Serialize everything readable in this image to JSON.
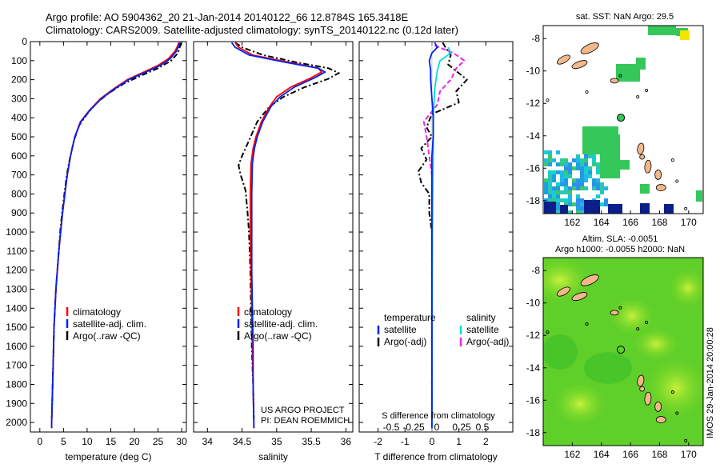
{
  "header": {
    "line1": "Argo profile: AO 5904362_20 21-Jan-2014 20140122_66 12.8784S 165.3418E",
    "line2": "Climatology: CARS2009. Satellite-adjusted climatology: synTS_20140122.nc (0.12d later)"
  },
  "stamp": "IMOS 29-Jan-2014 20:00:28",
  "colors": {
    "climatology": "#ff0000",
    "satellite": "#0022ee",
    "argo": "#000000",
    "sal_satellite": "#00dddd",
    "sal_argo": "#ee22ee"
  },
  "chart_data": [
    {
      "type": "line",
      "name": "temperature",
      "xlabel": "temperature (deg C)",
      "ylabel": "",
      "xlim": [
        -2,
        31
      ],
      "ylim": [
        2050,
        0
      ],
      "xticks": [
        "0",
        "5",
        "10",
        "15",
        "20",
        "25",
        "30"
      ],
      "xtick_values": [
        0,
        5,
        10,
        15,
        20,
        25,
        30
      ],
      "yticks": [
        "0",
        "100",
        "200",
        "300",
        "400",
        "500",
        "600",
        "700",
        "800",
        "900",
        "1000",
        "1100",
        "1200",
        "1300",
        "1400",
        "1500",
        "1600",
        "1700",
        "1800",
        "1900",
        "2000"
      ],
      "ytick_values": [
        0,
        100,
        200,
        300,
        400,
        500,
        600,
        700,
        800,
        900,
        1000,
        1100,
        1200,
        1300,
        1400,
        1500,
        1600,
        1700,
        1800,
        1900,
        2000
      ],
      "legend": [
        "climatology",
        "satellite-adj. clim.",
        "Argo(..raw -QC)"
      ],
      "series": [
        {
          "name": "climatology",
          "style": "solid",
          "points": [
            [
              29.4,
              5
            ],
            [
              29.2,
              20
            ],
            [
              28.6,
              50
            ],
            [
              27.2,
              90
            ],
            [
              25.0,
              125
            ],
            [
              22.0,
              160
            ],
            [
              18.5,
              200
            ],
            [
              15.5,
              250
            ],
            [
              12.8,
              300
            ],
            [
              10.5,
              360
            ],
            [
              8.6,
              420
            ],
            [
              7.4,
              500
            ],
            [
              6.5,
              600
            ],
            [
              5.8,
              700
            ],
            [
              5.3,
              800
            ],
            [
              4.8,
              900
            ],
            [
              4.4,
              1000
            ],
            [
              4.0,
              1100
            ],
            [
              3.7,
              1200
            ],
            [
              3.4,
              1300
            ],
            [
              3.2,
              1400
            ],
            [
              3.0,
              1500
            ],
            [
              2.9,
              1600
            ],
            [
              2.8,
              1700
            ],
            [
              2.7,
              1800
            ],
            [
              2.6,
              1900
            ],
            [
              2.5,
              2000
            ],
            [
              2.5,
              2030
            ]
          ]
        },
        {
          "name": "satellite-adj. clim.",
          "style": "solid",
          "points": [
            [
              29.6,
              5
            ],
            [
              29.4,
              20
            ],
            [
              28.9,
              50
            ],
            [
              27.6,
              90
            ],
            [
              25.5,
              125
            ],
            [
              22.4,
              160
            ],
            [
              18.8,
              200
            ],
            [
              15.7,
              250
            ],
            [
              13.0,
              300
            ],
            [
              10.6,
              360
            ],
            [
              8.7,
              420
            ],
            [
              7.4,
              500
            ],
            [
              6.5,
              600
            ],
            [
              5.8,
              700
            ],
            [
              5.3,
              800
            ],
            [
              4.8,
              900
            ],
            [
              4.4,
              1000
            ],
            [
              4.0,
              1100
            ],
            [
              3.7,
              1200
            ],
            [
              3.4,
              1300
            ],
            [
              3.2,
              1400
            ],
            [
              3.0,
              1500
            ],
            [
              2.9,
              1600
            ],
            [
              2.8,
              1700
            ],
            [
              2.7,
              1800
            ],
            [
              2.6,
              1900
            ],
            [
              2.5,
              2000
            ],
            [
              2.5,
              2030
            ]
          ]
        },
        {
          "name": "Argo(..raw -QC)",
          "style": "dashed",
          "points": [
            [
              29.8,
              5
            ],
            [
              29.7,
              20
            ],
            [
              29.2,
              60
            ],
            [
              27.8,
              100
            ],
            [
              25.0,
              140
            ],
            [
              21.3,
              180
            ],
            [
              17.8,
              220
            ],
            [
              14.6,
              270
            ],
            [
              12.1,
              320
            ],
            [
              10.0,
              380
            ],
            [
              8.3,
              440
            ],
            [
              7.2,
              520
            ],
            [
              6.3,
              620
            ],
            [
              5.7,
              700
            ],
            [
              5.2,
              800
            ],
            [
              4.7,
              900
            ],
            [
              4.3,
              1000
            ],
            [
              4.0,
              1100
            ],
            [
              3.7,
              1200
            ],
            [
              3.4,
              1300
            ],
            [
              3.2,
              1400
            ],
            [
              3.0,
              1500
            ],
            [
              2.9,
              1600
            ],
            [
              2.8,
              1700
            ],
            [
              2.7,
              1800
            ],
            [
              2.6,
              1900
            ],
            [
              2.5,
              1980
            ]
          ]
        }
      ]
    },
    {
      "type": "line",
      "name": "salinity",
      "xlabel": "salinity",
      "xlim": [
        33.8,
        36.1
      ],
      "ylim": [
        2050,
        0
      ],
      "xticks": [
        "34",
        "34.5",
        "35",
        "35.5",
        "36"
      ],
      "xtick_values": [
        34,
        34.5,
        35,
        35.5,
        36
      ],
      "legend": [
        "climatology",
        "satellite-adj. clim.",
        "Argo(..raw -QC)"
      ],
      "annotation": [
        "US ARGO PROJECT",
        "PI: DEAN ROEMMICH"
      ],
      "series": [
        {
          "name": "climatology",
          "style": "solid",
          "points": [
            [
              34.4,
              5
            ],
            [
              34.45,
              30
            ],
            [
              34.65,
              70
            ],
            [
              35.2,
              110
            ],
            [
              35.6,
              140
            ],
            [
              35.65,
              160
            ],
            [
              35.5,
              190
            ],
            [
              35.2,
              240
            ],
            [
              35.0,
              290
            ],
            [
              34.9,
              340
            ],
            [
              34.78,
              420
            ],
            [
              34.7,
              500
            ],
            [
              34.66,
              560
            ],
            [
              34.63,
              640
            ],
            [
              34.62,
              800
            ],
            [
              34.62,
              1000
            ],
            [
              34.63,
              1200
            ],
            [
              34.64,
              1400
            ],
            [
              34.65,
              1600
            ],
            [
              34.66,
              1800
            ],
            [
              34.67,
              2000
            ],
            [
              34.67,
              2030
            ]
          ]
        },
        {
          "name": "satellite-adj. clim.",
          "style": "solid",
          "points": [
            [
              34.35,
              5
            ],
            [
              34.4,
              30
            ],
            [
              34.6,
              70
            ],
            [
              35.15,
              110
            ],
            [
              35.6,
              140
            ],
            [
              35.7,
              160
            ],
            [
              35.55,
              190
            ],
            [
              35.25,
              240
            ],
            [
              35.05,
              290
            ],
            [
              34.92,
              340
            ],
            [
              34.8,
              420
            ],
            [
              34.72,
              500
            ],
            [
              34.68,
              560
            ],
            [
              34.65,
              640
            ],
            [
              34.64,
              800
            ],
            [
              34.64,
              1000
            ],
            [
              34.64,
              1200
            ],
            [
              34.65,
              1400
            ],
            [
              34.66,
              1600
            ],
            [
              34.66,
              1800
            ],
            [
              34.67,
              2000
            ],
            [
              34.67,
              2030
            ]
          ]
        },
        {
          "name": "Argo(..raw -QC)",
          "style": "dashed",
          "points": [
            [
              34.4,
              5
            ],
            [
              34.5,
              30
            ],
            [
              34.8,
              70
            ],
            [
              35.3,
              110
            ],
            [
              35.75,
              140
            ],
            [
              35.9,
              165
            ],
            [
              35.75,
              195
            ],
            [
              35.4,
              240
            ],
            [
              35.1,
              290
            ],
            [
              34.9,
              340
            ],
            [
              34.72,
              420
            ],
            [
              34.6,
              520
            ],
            [
              34.5,
              600
            ],
            [
              34.45,
              650
            ],
            [
              34.48,
              700
            ],
            [
              34.55,
              780
            ],
            [
              34.58,
              900
            ],
            [
              34.6,
              1000
            ],
            [
              34.62,
              1200
            ],
            [
              34.63,
              1400
            ],
            [
              34.64,
              1600
            ],
            [
              34.66,
              1800
            ],
            [
              34.67,
              1980
            ]
          ]
        }
      ]
    },
    {
      "type": "line",
      "name": "differences",
      "xlabel": "T difference from climatology",
      "xlabel2": "S difference from climatology",
      "xlim": [
        -2.7,
        3.0
      ],
      "ylim": [
        2050,
        0
      ],
      "xticks": [
        "-2",
        "-1",
        "0",
        "1",
        "2"
      ],
      "xtick_values": [
        -2,
        -1,
        0,
        1,
        2
      ],
      "s_xticks": [
        "-0.5",
        "-0.25",
        "0",
        "0.25",
        "0.5"
      ],
      "s_xtick_values": [
        -0.5,
        -0.25,
        0,
        0.25,
        0.5
      ],
      "legend_temperature_title": "temperature",
      "legend_salinity_title": "salinity",
      "legend_temperature": [
        "satellite",
        "Argo(-adj)"
      ],
      "legend_salinity": [
        "satellite",
        "Argo(-adj)"
      ],
      "series": [
        {
          "name": "T satellite",
          "style": "solid",
          "points": [
            [
              0.1,
              5
            ],
            [
              0.2,
              30
            ],
            [
              0.0,
              60
            ],
            [
              -0.1,
              100
            ],
            [
              -0.05,
              150
            ],
            [
              -0.05,
              200
            ],
            [
              0.0,
              300
            ],
            [
              0.05,
              400
            ],
            [
              0.05,
              500
            ],
            [
              0.0,
              600
            ],
            [
              0.0,
              800
            ],
            [
              0.0,
              1000
            ],
            [
              0.0,
              1500
            ],
            [
              0.0,
              2030
            ]
          ]
        },
        {
          "name": "T Argo(-adj)",
          "style": "dashed",
          "points": [
            [
              0.4,
              5
            ],
            [
              0.5,
              30
            ],
            [
              0.7,
              70
            ],
            [
              0.6,
              120
            ],
            [
              1.3,
              200
            ],
            [
              0.9,
              260
            ],
            [
              1.0,
              320
            ],
            [
              0.0,
              380
            ],
            [
              -0.2,
              450
            ],
            [
              0.0,
              500
            ],
            [
              -0.4,
              560
            ],
            [
              -0.2,
              620
            ],
            [
              -0.5,
              680
            ],
            [
              -0.4,
              740
            ],
            [
              -0.1,
              800
            ],
            [
              -0.1,
              900
            ],
            [
              0.0,
              1000
            ],
            [
              0.0,
              1500
            ],
            [
              0.0,
              1980
            ]
          ]
        },
        {
          "name": "S satellite",
          "style": "solid",
          "points": [
            [
              0.6,
              30
            ],
            [
              0.7,
              60
            ],
            [
              0.3,
              100
            ],
            [
              0.2,
              150
            ],
            [
              0.1,
              250
            ],
            [
              0.05,
              400
            ],
            [
              0.05,
              600
            ],
            [
              0.03,
              800
            ],
            [
              0.02,
              1000
            ],
            [
              0.0,
              1500
            ],
            [
              0.0,
              2030
            ]
          ]
        },
        {
          "name": "S Argo(-adj)",
          "style": "dashed",
          "points": [
            [
              0.1,
              20
            ],
            [
              0.8,
              60
            ],
            [
              1.2,
              100
            ],
            [
              0.9,
              140
            ],
            [
              0.7,
              200
            ],
            [
              0.3,
              260
            ],
            [
              0.2,
              330
            ],
            [
              -0.3,
              420
            ],
            [
              -0.2,
              500
            ],
            [
              -0.1,
              600
            ],
            [
              0.0,
              700
            ],
            [
              0.0,
              900
            ],
            [
              0.0,
              1200
            ],
            [
              0.0,
              1600
            ],
            [
              0.0,
              1980
            ]
          ]
        }
      ]
    },
    {
      "type": "heatmap",
      "name": "sst-map",
      "title": "sat. SST: NaN Argo: 29.5",
      "xlim": [
        160,
        171
      ],
      "ylim": [
        -18.8,
        -7.2
      ],
      "xticks": [
        "162",
        "164",
        "166",
        "168",
        "170"
      ],
      "xtick_values": [
        162,
        164,
        166,
        168,
        170
      ],
      "yticks": [
        "-8",
        "-10",
        "-12",
        "-14",
        "-16",
        "-18"
      ],
      "ytick_values": [
        -8,
        -10,
        -12,
        -14,
        -16,
        -18
      ],
      "argo_position": [
        165.34,
        -12.88
      ]
    },
    {
      "type": "heatmap",
      "name": "sla-map",
      "title": "Altim. SLA: -0.0051",
      "subtitle": "Argo h1000: -0.0055 h2000: NaN",
      "xlim": [
        160,
        171
      ],
      "ylim": [
        -18.8,
        -7.2
      ],
      "xticks": [
        "162",
        "164",
        "166",
        "168",
        "170"
      ],
      "xtick_values": [
        162,
        164,
        166,
        168,
        170
      ],
      "yticks": [
        "-8",
        "-10",
        "-12",
        "-14",
        "-16",
        "-18"
      ],
      "ytick_values": [
        -8,
        -10,
        -12,
        -14,
        -16,
        -18
      ],
      "argo_position": [
        165.34,
        -12.88
      ]
    }
  ]
}
